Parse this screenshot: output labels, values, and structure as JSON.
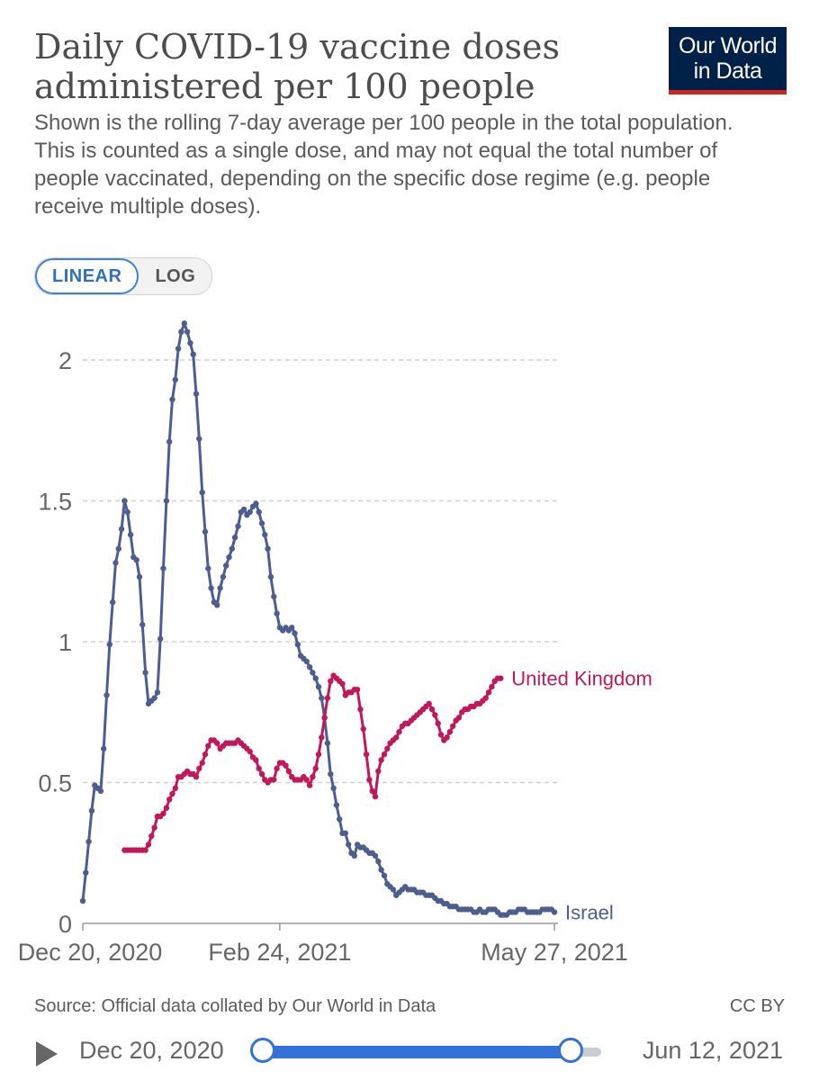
{
  "header": {
    "title": "Daily COVID-19 vaccine doses administered per 100 people",
    "subtitle": "Shown is the rolling 7-day average per 100 people in the total population. This is counted as a single dose, and may not equal the total number of people vaccinated, depending on the specific dose regime (e.g. people receive multiple doses).",
    "logo_line1": "Our World",
    "logo_line2": "in Data"
  },
  "scale_toggle": {
    "linear": "LINEAR",
    "log": "LOG",
    "selected": "LINEAR"
  },
  "footer": {
    "source": "Source: Official data collated by Our World in Data",
    "license": "CC BY"
  },
  "timeline": {
    "start_label": "Dec 20, 2020",
    "end_label": "Jun 12, 2021"
  },
  "colors": {
    "israel": "#4c5e8f",
    "uk": "#c2185b",
    "grid": "#d0d0d0",
    "accent": "#3471d8"
  },
  "chart_data": {
    "type": "line",
    "title": "Daily COVID-19 vaccine doses administered per 100 people",
    "xlabel": "",
    "ylabel": "",
    "x_start": "Dec 20, 2020",
    "x_end": "May 27, 2021",
    "xlim_days": [
      0,
      158
    ],
    "ylim": [
      0,
      2.2
    ],
    "yticks": [
      {
        "value": 0,
        "label": "0"
      },
      {
        "value": 0.5,
        "label": "0.5"
      },
      {
        "value": 1,
        "label": "1"
      },
      {
        "value": 1.5,
        "label": "1.5"
      },
      {
        "value": 2,
        "label": "2"
      }
    ],
    "xticks": [
      {
        "day": 0,
        "label": "Dec 20, 2020"
      },
      {
        "day": 66,
        "label": "Feb 24, 2021"
      },
      {
        "day": 158,
        "label": "May 27, 2021"
      }
    ],
    "grid": "horizontal-dashed",
    "legend": "end-of-line labels",
    "series": [
      {
        "name": "Israel",
        "label": "Israel",
        "color": "#4c5e8f",
        "points": [
          [
            0,
            0.08
          ],
          [
            1,
            0.18
          ],
          [
            2,
            0.29
          ],
          [
            3,
            0.4
          ],
          [
            4,
            0.49
          ],
          [
            5,
            0.48
          ],
          [
            6,
            0.47
          ],
          [
            7,
            0.62
          ],
          [
            8,
            0.81
          ],
          [
            9,
            0.99
          ],
          [
            10,
            1.14
          ],
          [
            11,
            1.28
          ],
          [
            12,
            1.33
          ],
          [
            13,
            1.4
          ],
          [
            14,
            1.5
          ],
          [
            15,
            1.46
          ],
          [
            16,
            1.38
          ],
          [
            17,
            1.3
          ],
          [
            18,
            1.29
          ],
          [
            19,
            1.23
          ],
          [
            20,
            1.06
          ],
          [
            21,
            0.89
          ],
          [
            22,
            0.78
          ],
          [
            23,
            0.79
          ],
          [
            24,
            0.8
          ],
          [
            25,
            0.82
          ],
          [
            26,
            1.01
          ],
          [
            27,
            1.26
          ],
          [
            28,
            1.5
          ],
          [
            29,
            1.71
          ],
          [
            30,
            1.86
          ],
          [
            31,
            1.93
          ],
          [
            32,
            2.04
          ],
          [
            33,
            2.1
          ],
          [
            34,
            2.13
          ],
          [
            35,
            2.1
          ],
          [
            36,
            2.06
          ],
          [
            37,
            2.02
          ],
          [
            38,
            1.88
          ],
          [
            39,
            1.72
          ],
          [
            40,
            1.53
          ],
          [
            41,
            1.39
          ],
          [
            42,
            1.26
          ],
          [
            43,
            1.19
          ],
          [
            44,
            1.14
          ],
          [
            45,
            1.13
          ],
          [
            46,
            1.19
          ],
          [
            47,
            1.23
          ],
          [
            48,
            1.27
          ],
          [
            49,
            1.3
          ],
          [
            50,
            1.33
          ],
          [
            51,
            1.37
          ],
          [
            52,
            1.41
          ],
          [
            53,
            1.46
          ],
          [
            54,
            1.47
          ],
          [
            55,
            1.45
          ],
          [
            56,
            1.46
          ],
          [
            57,
            1.48
          ],
          [
            58,
            1.49
          ],
          [
            59,
            1.46
          ],
          [
            60,
            1.42
          ],
          [
            61,
            1.38
          ],
          [
            62,
            1.33
          ],
          [
            63,
            1.23
          ],
          [
            64,
            1.16
          ],
          [
            65,
            1.1
          ],
          [
            66,
            1.05
          ],
          [
            67,
            1.04
          ],
          [
            68,
            1.05
          ],
          [
            69,
            1.04
          ],
          [
            70,
            1.05
          ],
          [
            71,
            1.03
          ],
          [
            72,
            0.99
          ],
          [
            73,
            0.95
          ],
          [
            74,
            0.94
          ],
          [
            75,
            0.93
          ],
          [
            76,
            0.91
          ],
          [
            77,
            0.89
          ],
          [
            78,
            0.87
          ],
          [
            79,
            0.84
          ],
          [
            80,
            0.8
          ],
          [
            81,
            0.73
          ],
          [
            82,
            0.64
          ],
          [
            83,
            0.53
          ],
          [
            84,
            0.48
          ],
          [
            85,
            0.42
          ],
          [
            86,
            0.37
          ],
          [
            87,
            0.32
          ],
          [
            88,
            0.32
          ],
          [
            89,
            0.28
          ],
          [
            90,
            0.25
          ],
          [
            91,
            0.24
          ],
          [
            92,
            0.28
          ],
          [
            93,
            0.27
          ],
          [
            94,
            0.27
          ],
          [
            95,
            0.26
          ],
          [
            96,
            0.25
          ],
          [
            97,
            0.25
          ],
          [
            98,
            0.24
          ],
          [
            99,
            0.22
          ],
          [
            100,
            0.19
          ],
          [
            101,
            0.17
          ],
          [
            102,
            0.14
          ],
          [
            103,
            0.13
          ],
          [
            104,
            0.12
          ],
          [
            105,
            0.1
          ],
          [
            106,
            0.11
          ],
          [
            107,
            0.12
          ],
          [
            108,
            0.13
          ],
          [
            109,
            0.12
          ],
          [
            110,
            0.12
          ],
          [
            111,
            0.12
          ],
          [
            112,
            0.11
          ],
          [
            113,
            0.11
          ],
          [
            114,
            0.11
          ],
          [
            115,
            0.1
          ],
          [
            116,
            0.1
          ],
          [
            117,
            0.1
          ],
          [
            118,
            0.09
          ],
          [
            119,
            0.08
          ],
          [
            120,
            0.08
          ],
          [
            121,
            0.07
          ],
          [
            122,
            0.07
          ],
          [
            123,
            0.06
          ],
          [
            124,
            0.06
          ],
          [
            125,
            0.06
          ],
          [
            126,
            0.05
          ],
          [
            127,
            0.05
          ],
          [
            128,
            0.05
          ],
          [
            129,
            0.05
          ],
          [
            130,
            0.05
          ],
          [
            131,
            0.04
          ],
          [
            132,
            0.04
          ],
          [
            133,
            0.05
          ],
          [
            134,
            0.04
          ],
          [
            135,
            0.04
          ],
          [
            136,
            0.05
          ],
          [
            137,
            0.05
          ],
          [
            138,
            0.05
          ],
          [
            139,
            0.04
          ],
          [
            140,
            0.03
          ],
          [
            141,
            0.03
          ],
          [
            142,
            0.03
          ],
          [
            143,
            0.04
          ],
          [
            144,
            0.04
          ],
          [
            145,
            0.04
          ],
          [
            146,
            0.05
          ],
          [
            147,
            0.05
          ],
          [
            148,
            0.05
          ],
          [
            149,
            0.04
          ],
          [
            150,
            0.04
          ],
          [
            151,
            0.04
          ],
          [
            152,
            0.04
          ],
          [
            153,
            0.04
          ],
          [
            154,
            0.05
          ],
          [
            155,
            0.05
          ],
          [
            156,
            0.05
          ],
          [
            157,
            0.05
          ],
          [
            158,
            0.04
          ]
        ]
      },
      {
        "name": "United Kingdom",
        "label": "United Kingdom",
        "color": "#c2185b",
        "points": [
          [
            14,
            0.26
          ],
          [
            15,
            0.26
          ],
          [
            16,
            0.26
          ],
          [
            17,
            0.26
          ],
          [
            18,
            0.26
          ],
          [
            19,
            0.26
          ],
          [
            20,
            0.26
          ],
          [
            21,
            0.26
          ],
          [
            22,
            0.28
          ],
          [
            23,
            0.31
          ],
          [
            24,
            0.34
          ],
          [
            25,
            0.38
          ],
          [
            26,
            0.38
          ],
          [
            27,
            0.39
          ],
          [
            28,
            0.41
          ],
          [
            29,
            0.44
          ],
          [
            30,
            0.46
          ],
          [
            31,
            0.48
          ],
          [
            32,
            0.52
          ],
          [
            33,
            0.52
          ],
          [
            34,
            0.53
          ],
          [
            35,
            0.54
          ],
          [
            36,
            0.53
          ],
          [
            37,
            0.53
          ],
          [
            38,
            0.52
          ],
          [
            39,
            0.55
          ],
          [
            40,
            0.57
          ],
          [
            41,
            0.6
          ],
          [
            42,
            0.63
          ],
          [
            43,
            0.65
          ],
          [
            44,
            0.65
          ],
          [
            45,
            0.64
          ],
          [
            46,
            0.62
          ],
          [
            47,
            0.63
          ],
          [
            48,
            0.64
          ],
          [
            49,
            0.64
          ],
          [
            50,
            0.64
          ],
          [
            51,
            0.64
          ],
          [
            52,
            0.65
          ],
          [
            53,
            0.64
          ],
          [
            54,
            0.63
          ],
          [
            55,
            0.62
          ],
          [
            56,
            0.61
          ],
          [
            57,
            0.59
          ],
          [
            58,
            0.58
          ],
          [
            59,
            0.55
          ],
          [
            60,
            0.53
          ],
          [
            61,
            0.51
          ],
          [
            62,
            0.5
          ],
          [
            63,
            0.51
          ],
          [
            64,
            0.51
          ],
          [
            65,
            0.55
          ],
          [
            66,
            0.57
          ],
          [
            67,
            0.57
          ],
          [
            68,
            0.56
          ],
          [
            69,
            0.54
          ],
          [
            70,
            0.52
          ],
          [
            71,
            0.51
          ],
          [
            72,
            0.51
          ],
          [
            73,
            0.51
          ],
          [
            74,
            0.52
          ],
          [
            75,
            0.51
          ],
          [
            76,
            0.49
          ],
          [
            77,
            0.52
          ],
          [
            78,
            0.55
          ],
          [
            79,
            0.6
          ],
          [
            80,
            0.66
          ],
          [
            81,
            0.73
          ],
          [
            82,
            0.8
          ],
          [
            83,
            0.86
          ],
          [
            84,
            0.88
          ],
          [
            85,
            0.87
          ],
          [
            86,
            0.86
          ],
          [
            87,
            0.85
          ],
          [
            88,
            0.81
          ],
          [
            89,
            0.82
          ],
          [
            90,
            0.82
          ],
          [
            91,
            0.83
          ],
          [
            92,
            0.83
          ],
          [
            93,
            0.76
          ],
          [
            94,
            0.69
          ],
          [
            95,
            0.6
          ],
          [
            96,
            0.51
          ],
          [
            97,
            0.47
          ],
          [
            98,
            0.45
          ],
          [
            99,
            0.54
          ],
          [
            100,
            0.58
          ],
          [
            101,
            0.6
          ],
          [
            102,
            0.62
          ],
          [
            103,
            0.64
          ],
          [
            104,
            0.65
          ],
          [
            105,
            0.66
          ],
          [
            106,
            0.68
          ],
          [
            107,
            0.7
          ],
          [
            108,
            0.71
          ],
          [
            109,
            0.71
          ],
          [
            110,
            0.72
          ],
          [
            111,
            0.73
          ],
          [
            112,
            0.74
          ],
          [
            113,
            0.75
          ],
          [
            114,
            0.76
          ],
          [
            115,
            0.77
          ],
          [
            116,
            0.78
          ],
          [
            117,
            0.76
          ],
          [
            118,
            0.74
          ],
          [
            119,
            0.71
          ],
          [
            120,
            0.67
          ],
          [
            121,
            0.65
          ],
          [
            122,
            0.66
          ],
          [
            123,
            0.68
          ],
          [
            124,
            0.7
          ],
          [
            125,
            0.72
          ],
          [
            126,
            0.73
          ],
          [
            127,
            0.75
          ],
          [
            128,
            0.76
          ],
          [
            129,
            0.76
          ],
          [
            130,
            0.77
          ],
          [
            131,
            0.77
          ],
          [
            132,
            0.78
          ],
          [
            133,
            0.78
          ],
          [
            134,
            0.79
          ],
          [
            135,
            0.8
          ],
          [
            136,
            0.82
          ],
          [
            137,
            0.84
          ],
          [
            138,
            0.86
          ],
          [
            139,
            0.87
          ],
          [
            140,
            0.87
          ]
        ]
      }
    ]
  }
}
